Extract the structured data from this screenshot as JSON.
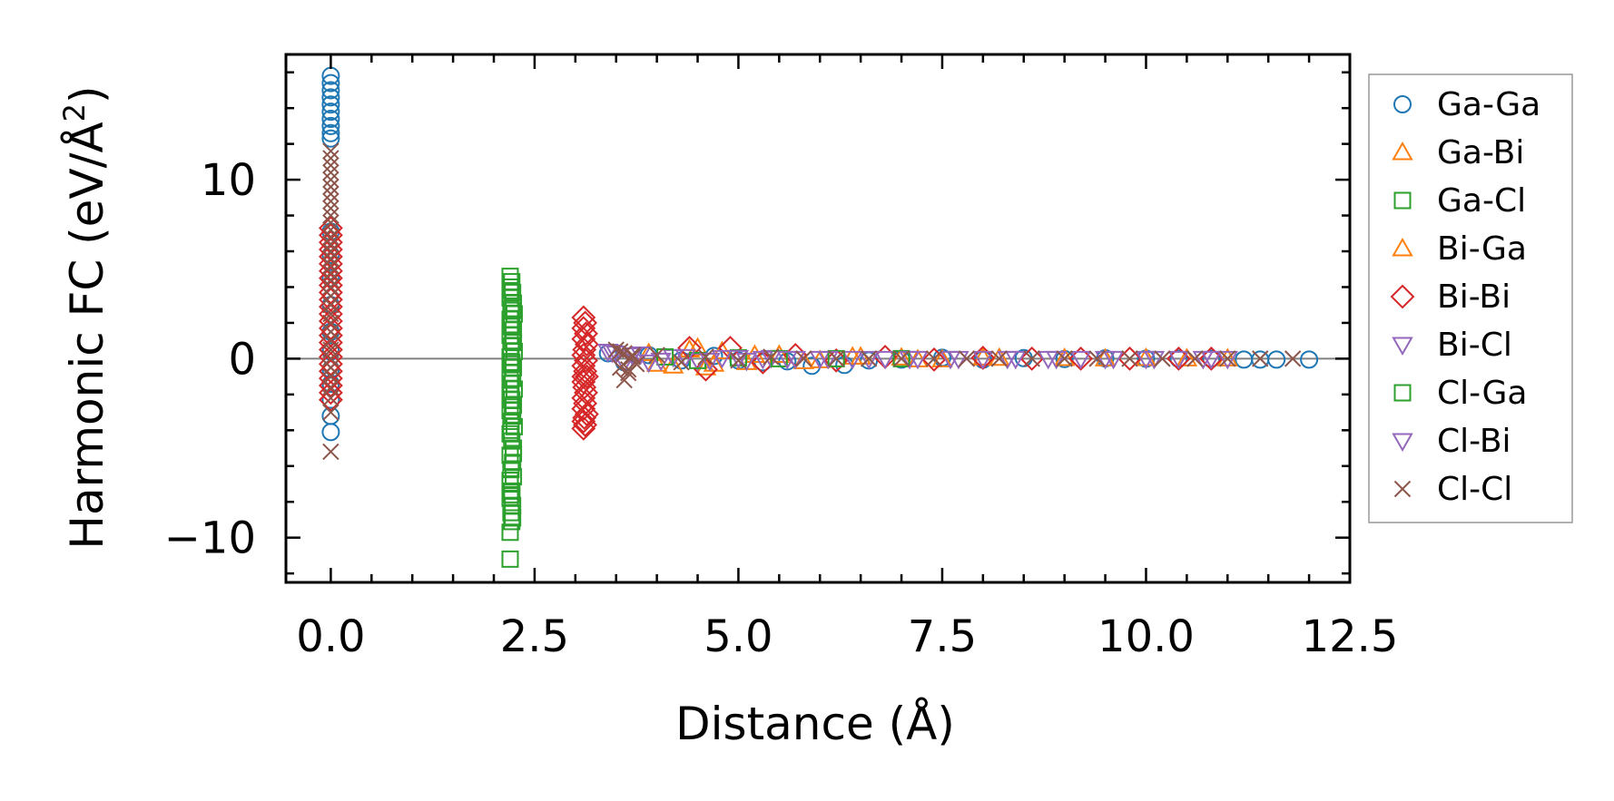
{
  "chart_data": {
    "type": "scatter",
    "title": "",
    "xlabel": "Distance (Å)",
    "ylabel_main": "Harmonic FC (eV/Å",
    "ylabel_sup": "2",
    "ylabel_close": ")",
    "xlim": [
      -0.55,
      12.5
    ],
    "ylim": [
      -12.5,
      17.0
    ],
    "xticks": [
      0.0,
      2.5,
      5.0,
      7.5,
      10.0,
      12.5
    ],
    "xtick_labels": [
      "0.0",
      "2.5",
      "5.0",
      "7.5",
      "10.0",
      "12.5"
    ],
    "yticks": [
      -10,
      0,
      10
    ],
    "ytick_labels": [
      "−10",
      "0",
      "10"
    ],
    "reference_line_y": 0,
    "legend_position": "outside-right",
    "series": [
      {
        "name": "Ga-Ga",
        "marker": "circle",
        "color": "#1f77b4",
        "x": [
          0,
          0,
          0,
          0,
          0,
          0,
          0,
          0,
          0,
          0,
          0,
          0,
          0,
          0,
          0,
          0,
          0,
          0,
          0,
          0,
          0,
          3.4,
          3.6,
          3.9,
          4.3,
          4.7,
          5.0,
          5.3,
          5.6,
          5.9,
          6.3,
          6.6,
          7.0,
          7.5,
          8.0,
          8.5,
          9.0,
          9.5,
          10.0,
          10.4,
          10.8,
          11.2,
          11.4,
          11.6,
          12.0
        ],
        "y": [
          15.8,
          15.4,
          15.0,
          14.6,
          14.2,
          13.8,
          13.4,
          13.0,
          12.6,
          12.3,
          7.1,
          5.8,
          4.5,
          3.0,
          1.5,
          0.4,
          -0.6,
          -1.4,
          -2.3,
          -3.2,
          -4.1,
          0.3,
          -0.2,
          0.2,
          -0.1,
          0.15,
          -0.1,
          -0.2,
          -0.15,
          -0.4,
          -0.35,
          -0.1,
          -0.05,
          0.05,
          -0.05,
          0.03,
          -0.02,
          0.02,
          0.0,
          0.0,
          0.0,
          -0.05,
          -0.05,
          -0.05,
          -0.05
        ]
      },
      {
        "name": "Ga-Bi",
        "marker": "triangle-up",
        "color": "#ff7f0e",
        "x": [
          3.9,
          4.2,
          4.5,
          4.6,
          4.8,
          5.1,
          5.5,
          6.0,
          6.5,
          7.0,
          7.5,
          8.0,
          9.0,
          10.0,
          10.5
        ],
        "y": [
          0.3,
          -0.4,
          0.6,
          -0.5,
          0.4,
          -0.2,
          0.2,
          -0.1,
          0.1,
          0.05,
          -0.05,
          0.05,
          0.02,
          0.02,
          0.0
        ]
      },
      {
        "name": "Ga-Cl",
        "marker": "square",
        "color": "#2ca02c",
        "x": [
          2.2,
          2.22,
          2.2,
          2.23,
          2.2,
          2.24,
          2.21,
          2.25,
          2.2,
          2.22,
          2.24,
          2.2,
          2.23,
          2.21,
          2.25,
          2.2,
          2.22,
          2.24,
          2.2,
          2.23,
          2.21,
          2.25,
          2.2,
          2.22,
          2.24,
          2.2,
          2.23,
          2.21,
          2.25,
          2.2,
          2.22,
          2.24,
          2.2,
          2.23,
          2.21,
          2.24,
          2.2,
          2.22,
          2.2,
          2.23,
          2.21,
          2.22,
          2.2,
          2.2
        ],
        "y": [
          4.6,
          4.3,
          4.0,
          3.7,
          3.4,
          3.1,
          2.8,
          2.5,
          2.2,
          1.9,
          1.6,
          1.3,
          1.0,
          0.7,
          0.4,
          0.1,
          -0.2,
          -0.5,
          -0.8,
          -1.1,
          -1.4,
          -1.7,
          -2.0,
          -2.3,
          -2.6,
          -2.9,
          -3.2,
          -3.5,
          -3.8,
          -4.2,
          -4.6,
          -5.0,
          -5.4,
          -5.8,
          -6.2,
          -6.6,
          -7.0,
          -7.4,
          -7.8,
          -8.2,
          -8.6,
          -9.1,
          -9.7,
          -11.2
        ]
      },
      {
        "name": "Bi-Ga",
        "marker": "triangle-up",
        "color": "#ff7f0e",
        "x": [
          4.0,
          4.4,
          4.7,
          5.2,
          5.8,
          6.4,
          7.2,
          8.2,
          9.5,
          11.0
        ],
        "y": [
          -0.3,
          0.5,
          -0.3,
          0.2,
          -0.15,
          0.1,
          -0.05,
          0.03,
          0.0,
          0.0
        ]
      },
      {
        "name": "Bi-Bi",
        "marker": "diamond",
        "color": "#d62728",
        "x": [
          0,
          0,
          0,
          0,
          0,
          0,
          0,
          0,
          0,
          0,
          0,
          0,
          0,
          0,
          0,
          0,
          0,
          0,
          0,
          0,
          0,
          0,
          0,
          0,
          0,
          3.1,
          3.12,
          3.1,
          3.13,
          3.1,
          3.14,
          3.11,
          3.1,
          3.13,
          3.1,
          3.12,
          3.14,
          3.1,
          3.11,
          3.13,
          3.1,
          3.12,
          3.1,
          3.14,
          3.11,
          3.1,
          3.12,
          3.1,
          3.1,
          4.4,
          4.6,
          4.9,
          5.3,
          5.7,
          6.2,
          6.8,
          7.4,
          8.0,
          8.6,
          9.2,
          9.8,
          10.4,
          10.8
        ],
        "y": [
          7.3,
          6.9,
          6.5,
          6.1,
          5.7,
          5.3,
          4.9,
          4.5,
          4.1,
          3.7,
          3.3,
          2.9,
          2.5,
          2.1,
          1.7,
          1.3,
          0.9,
          0.5,
          0.1,
          -0.3,
          -0.7,
          -1.1,
          -1.5,
          -1.9,
          -2.3,
          2.3,
          2.0,
          1.7,
          1.4,
          1.1,
          0.8,
          0.5,
          0.2,
          -0.1,
          -0.4,
          -0.7,
          -1.0,
          -1.3,
          -1.6,
          -1.9,
          -2.2,
          -2.5,
          -2.8,
          -3.1,
          -3.3,
          -3.5,
          -3.7,
          -3.9,
          -1.0,
          0.6,
          -0.6,
          0.6,
          -0.2,
          0.2,
          -0.1,
          0.1,
          -0.05,
          0.05,
          0.0,
          0.0,
          0.0,
          0.0,
          0.0
        ]
      },
      {
        "name": "Bi-Cl",
        "marker": "triangle-down",
        "color": "#9467bd",
        "x": [
          3.4,
          3.5,
          3.7,
          3.9,
          4.2,
          4.5,
          4.8,
          5.1,
          5.4,
          5.7,
          6.0,
          6.4,
          6.8,
          7.2,
          7.6,
          8.0,
          8.4,
          8.8,
          9.2,
          9.6,
          10.0,
          10.4,
          10.8,
          11.0
        ],
        "y": [
          0.4,
          0.3,
          0.2,
          -0.2,
          0.1,
          -0.1,
          0.05,
          -0.1,
          0.05,
          0.0,
          0.0,
          0.0,
          0.0,
          0.0,
          0.0,
          0.0,
          0.0,
          0.0,
          0.0,
          0.0,
          0.0,
          0.0,
          0.0,
          0.0
        ]
      },
      {
        "name": "Cl-Ga",
        "marker": "square",
        "color": "#2ca02c",
        "x": [
          2.21,
          2.23,
          2.2,
          2.24,
          2.22,
          2.2,
          2.23,
          2.21,
          2.24,
          2.2,
          2.22,
          2.23,
          4.1,
          4.5,
          5.0,
          5.5,
          6.2,
          7.0
        ],
        "y": [
          3.8,
          2.7,
          1.8,
          0.9,
          -0.3,
          -1.2,
          -2.7,
          -4.0,
          -5.3,
          -6.8,
          -7.6,
          -8.9,
          0.1,
          -0.1,
          0.05,
          0.0,
          0.0,
          0.0
        ]
      },
      {
        "name": "Cl-Bi",
        "marker": "triangle-down",
        "color": "#9467bd",
        "x": [
          3.45,
          3.6,
          3.8,
          4.05,
          4.35,
          4.65,
          5.0,
          5.3,
          5.6,
          6.1,
          6.6,
          7.1,
          7.7,
          8.3,
          8.9,
          9.5,
          10.1,
          10.7
        ],
        "y": [
          0.35,
          -0.2,
          0.25,
          -0.1,
          0.1,
          -0.1,
          0.05,
          0.0,
          0.0,
          0.0,
          0.0,
          0.0,
          0.0,
          0.0,
          0.0,
          0.0,
          0.0,
          0.0
        ]
      },
      {
        "name": "Cl-Cl",
        "marker": "x",
        "color": "#8c564b",
        "x": [
          0,
          0,
          0,
          0,
          0,
          0,
          0,
          0,
          0,
          0,
          0,
          0,
          0,
          0,
          0,
          0,
          0,
          0,
          0,
          0,
          0,
          0,
          0,
          0,
          0,
          0,
          0,
          0,
          0,
          0,
          0,
          0,
          0,
          0,
          3.5,
          3.55,
          3.6,
          3.65,
          3.7,
          3.75,
          3.6,
          3.55,
          3.65,
          3.7,
          4.0,
          4.3,
          4.6,
          5.0,
          5.4,
          5.8,
          6.2,
          6.6,
          7.0,
          7.4,
          7.8,
          8.2,
          8.6,
          9.0,
          9.4,
          9.8,
          10.2,
          10.6,
          11.0,
          11.4,
          11.8
        ],
        "y": [
          11.6,
          11.2,
          10.8,
          10.4,
          10.0,
          9.6,
          9.2,
          8.8,
          8.4,
          8.0,
          7.6,
          7.2,
          6.8,
          6.4,
          6.0,
          5.6,
          5.2,
          4.8,
          4.4,
          4.0,
          3.5,
          3.0,
          2.5,
          2.0,
          1.5,
          1.0,
          0.5,
          0.0,
          -0.5,
          -1.0,
          -1.6,
          -2.2,
          -3.0,
          -5.2,
          0.5,
          -0.5,
          0.3,
          -0.8,
          0.2,
          -0.3,
          -1.2,
          0.4,
          -0.6,
          0.1,
          0.2,
          -0.2,
          0.1,
          -0.1,
          0.1,
          0.0,
          0.0,
          0.0,
          0.0,
          0.0,
          0.0,
          0.0,
          0.0,
          0.0,
          0.0,
          0.0,
          0.0,
          0.0,
          0.0,
          0.0,
          0.0
        ]
      }
    ]
  }
}
